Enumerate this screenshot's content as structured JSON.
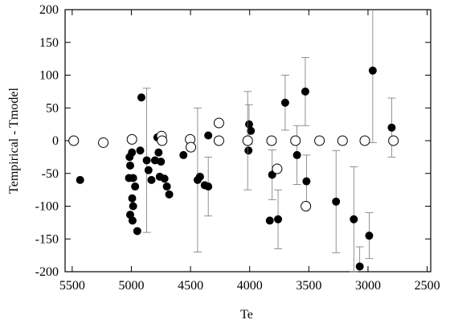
{
  "chart_data": {
    "type": "scatter",
    "x_label": "Te",
    "y_label": "Tempirical - Tmodel",
    "xlim": [
      5560,
      2470
    ],
    "ylim": [
      -200,
      200
    ],
    "x_inverted": true,
    "xticks": [
      5500,
      5000,
      4500,
      4000,
      3500,
      3000,
      2500
    ],
    "yticks": [
      200,
      150,
      100,
      50,
      0,
      -50,
      -100,
      -150,
      -200
    ],
    "series": [
      {
        "marker": "filled",
        "color": "#000000",
        "x": [
          5433,
          5010,
          4990,
          4985,
          4993,
          4968,
          4985,
          5020,
          5010,
          5015,
          4995,
          4950,
          4925,
          4915,
          4870,
          4855,
          4830,
          4800,
          4780,
          4770,
          4750,
          4760,
          4720,
          4700,
          4680,
          4560,
          4440,
          4420,
          4380,
          4350,
          4350,
          4010,
          4005,
          3990,
          3830,
          3810,
          3760,
          3700,
          3600,
          3530,
          3520,
          3270,
          3120,
          3070,
          2990,
          2960,
          2800
        ],
        "values": [
          -60,
          -113,
          -122,
          -100,
          -88,
          -70,
          -57,
          -57,
          -38,
          -25,
          -18,
          -138,
          -15,
          66,
          -30,
          -45,
          -60,
          -30,
          5,
          -18,
          -32,
          -55,
          -58,
          -70,
          -82,
          -22,
          -60,
          -55,
          -68,
          -70,
          8,
          -15,
          25,
          15,
          -122,
          -52,
          -120,
          58,
          -22,
          75,
          -62,
          -93,
          -120,
          -192,
          -145,
          107,
          20
        ],
        "errors": [
          null,
          null,
          null,
          null,
          null,
          null,
          null,
          null,
          null,
          null,
          null,
          null,
          null,
          null,
          110,
          null,
          null,
          null,
          null,
          null,
          null,
          null,
          null,
          null,
          null,
          null,
          110,
          null,
          null,
          45,
          null,
          null,
          30,
          null,
          null,
          38,
          45,
          42,
          45,
          52,
          40,
          78,
          80,
          30,
          35,
          110,
          45
        ]
      },
      {
        "marker": "open",
        "color": "#000000",
        "x": [
          5487,
          5237,
          4995,
          4745,
          4740,
          4503,
          4497,
          4260,
          4260,
          4017,
          3815,
          3768,
          3613,
          3525,
          3410,
          3215,
          3027,
          2785
        ],
        "values": [
          0,
          -3,
          2,
          7,
          0,
          2,
          -10,
          27,
          0,
          0,
          0,
          -43,
          0,
          -100,
          0,
          0,
          0,
          0
        ],
        "errors": [
          null,
          null,
          null,
          null,
          null,
          null,
          null,
          null,
          null,
          75,
          null,
          null,
          null,
          null,
          null,
          null,
          null,
          null
        ]
      }
    ]
  }
}
